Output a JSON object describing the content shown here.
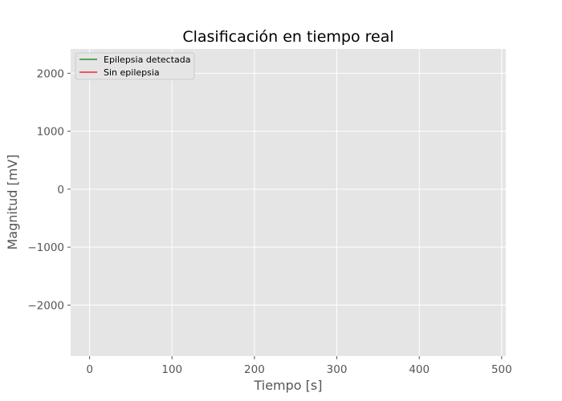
{
  "chart_data": {
    "type": "line",
    "title": "Clasificación en tiempo real",
    "xlabel": "Tiempo [s]",
    "ylabel": "Magnitud [mV]",
    "xlim": [
      -23,
      505
    ],
    "ylim": [
      -2880,
      2420
    ],
    "xticks": [
      0,
      100,
      200,
      300,
      400,
      500
    ],
    "yticks": [
      -2000,
      -1000,
      0,
      1000,
      2000
    ],
    "xtick_labels": [
      "0",
      "100",
      "200",
      "300",
      "400",
      "500"
    ],
    "ytick_labels": [
      "−2000",
      "−1000",
      "0",
      "1000",
      "2000"
    ],
    "grid": true,
    "legend_position": "top-left",
    "background_color": "#e5e5e5",
    "grid_color": "#ffffff",
    "series": [
      {
        "name": "Epilepsia detectada",
        "color": "#008000",
        "values": []
      },
      {
        "name": "Sin epilepsia",
        "color": "#ff0000",
        "values": []
      }
    ]
  }
}
